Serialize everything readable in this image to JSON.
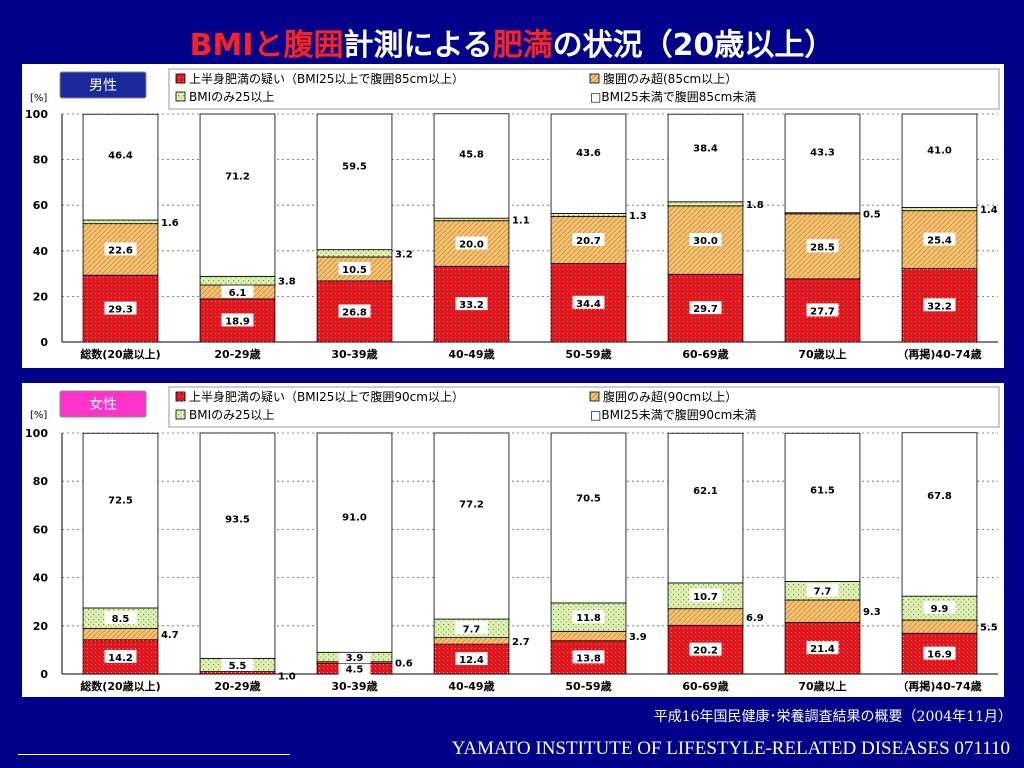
{
  "title": {
    "part1": "BMIと腹囲",
    "part2": "計測による",
    "part3": "肥満",
    "part4": "の状況（20歳以上）"
  },
  "colors": {
    "background": "#00008b",
    "title_accent": "#ff2020",
    "upper_obesity": "#e8141c",
    "waist_only": "#f2c47a",
    "bmi_only": "#dff0b5",
    "normal": "#ffffff",
    "male_badge": "#1a2a9c",
    "female_badge": "#ff33cc"
  },
  "source": "平成16年国民健康･栄養調査結果の概要（2004年11月）",
  "footer": "YAMATO INSTITUTE OF LIFESTYLE-RELATED DISEASES  071110",
  "chart_data": [
    {
      "type": "bar",
      "stacked": true,
      "badge": "男性",
      "unit_label": "[%]",
      "ylim": [
        0,
        100
      ],
      "yticks": [
        0,
        20,
        40,
        60,
        80,
        100
      ],
      "grid": true,
      "legend_position": "top",
      "legend": [
        "上半身肥満の疑い（BMI25以上で腹囲85cm以上）",
        "腹囲のみ超(85cm以上）",
        "BMIのみ25以上",
        "□BMI25未満で腹囲85cm未満"
      ],
      "categories": [
        "総数(20歳以上)",
        "20-29歳",
        "30-39歳",
        "40-49歳",
        "50-59歳",
        "60-69歳",
        "70歳以上",
        "（再掲)40-74歳"
      ],
      "series": [
        {
          "name": "上半身肥満の疑い（BMI25以上で腹囲85cm以上）",
          "values": [
            29.3,
            18.9,
            26.8,
            33.2,
            34.4,
            29.7,
            27.7,
            32.2
          ],
          "labels": [
            "29.3",
            "18.9",
            "26.8",
            "33.2",
            "34.4",
            "29.7",
            "27.7",
            "32.2"
          ]
        },
        {
          "name": "腹囲のみ超(85cm以上）",
          "values": [
            22.6,
            6.1,
            10.5,
            20.0,
            20.7,
            30.0,
            28.5,
            25.4
          ],
          "labels": [
            "22.6",
            "6.1",
            "10.5",
            "20.0",
            "20.7",
            "30.0",
            "28.5",
            "25.4"
          ]
        },
        {
          "name": "BMIのみ25以上",
          "values": [
            1.6,
            3.8,
            3.2,
            1.1,
            1.3,
            1.8,
            0.5,
            1.4
          ],
          "labels": [
            "1.6",
            "3.8",
            "3.2",
            "1.1",
            "1.3",
            "1.8",
            "0.5",
            "1.4"
          ]
        },
        {
          "name": "□BMI25未満で腹囲85cm未満",
          "values": [
            46.4,
            71.2,
            59.5,
            45.8,
            43.6,
            38.4,
            43.3,
            41.0
          ],
          "labels": [
            "46.4",
            "71.2",
            "59.5",
            "45.8",
            "43.6",
            "38.4",
            "43.3",
            "41.0"
          ]
        }
      ]
    },
    {
      "type": "bar",
      "stacked": true,
      "badge": "女性",
      "unit_label": "[%]",
      "ylim": [
        0,
        100
      ],
      "yticks": [
        0,
        20,
        40,
        60,
        80,
        100
      ],
      "grid": true,
      "legend_position": "top",
      "legend": [
        "上半身肥満の疑い（BMI25以上で腹囲90cm以上）",
        "腹囲のみ超(90cm以上）",
        "BMIのみ25以上",
        "□BMI25未満で腹囲90cm未満"
      ],
      "categories": [
        "総数(20歳以上)",
        "20-29歳",
        "30-39歳",
        "40-49歳",
        "50-59歳",
        "60-69歳",
        "70歳以上",
        "（再掲)40-74歳"
      ],
      "series": [
        {
          "name": "上半身肥満の疑い（BMI25以上で腹囲90cm以上）",
          "values": [
            14.2,
            1.0,
            4.5,
            12.4,
            13.8,
            20.2,
            21.4,
            16.9
          ],
          "labels": [
            "14.2",
            "1.0",
            "4.5",
            "12.4",
            "13.8",
            "20.2",
            "21.4",
            "16.9"
          ]
        },
        {
          "name": "腹囲のみ超(90cm以上）",
          "values": [
            4.7,
            0.0,
            0.6,
            2.7,
            3.9,
            6.9,
            9.3,
            5.5
          ],
          "labels": [
            "4.7",
            "",
            "0.6",
            "2.7",
            "3.9",
            "6.9",
            "9.3",
            "5.5"
          ]
        },
        {
          "name": "BMIのみ25以上",
          "values": [
            8.5,
            5.5,
            3.9,
            7.7,
            11.8,
            10.7,
            7.7,
            9.9
          ],
          "labels": [
            "8.5",
            "5.5",
            "3.9",
            "7.7",
            "11.8",
            "10.7",
            "7.7",
            "9.9"
          ]
        },
        {
          "name": "□BMI25未満で腹囲90cm未満",
          "values": [
            72.5,
            93.5,
            91.0,
            77.2,
            70.5,
            62.1,
            61.5,
            67.8
          ],
          "labels": [
            "72.5",
            "93.5",
            "91.0",
            "77.2",
            "70.5",
            "62.1",
            "61.5",
            "67.8"
          ]
        }
      ]
    }
  ]
}
